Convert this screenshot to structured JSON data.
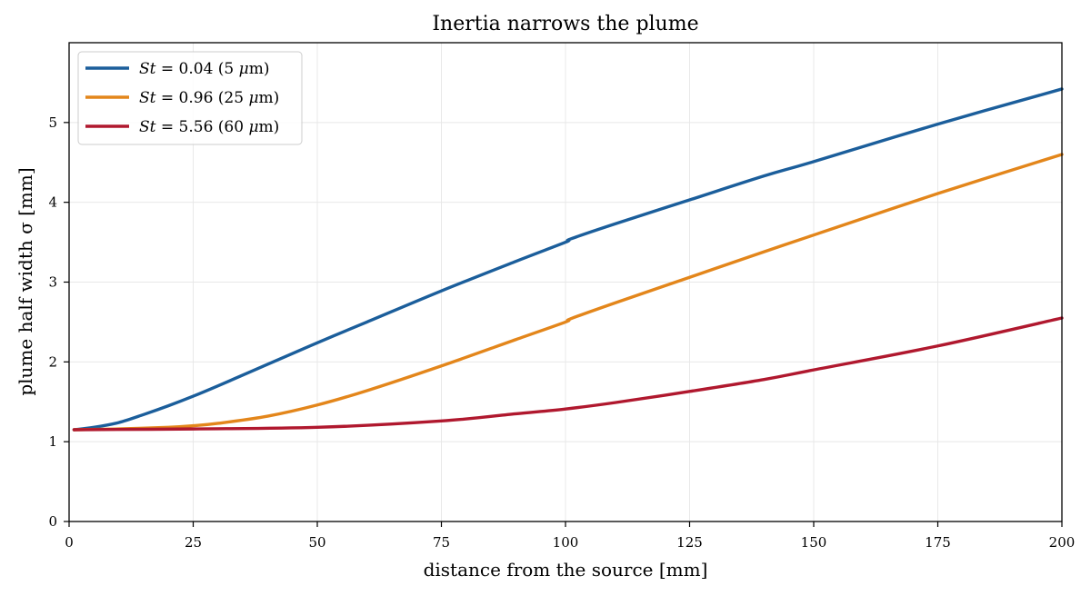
{
  "chart_data": {
    "type": "line",
    "title": "Inertia narrows the plume",
    "xlabel": "distance from the source [mm]",
    "ylabel": "plume half width σ [mm]",
    "xlim": [
      0,
      200
    ],
    "ylim": [
      0,
      6
    ],
    "xticks": [
      0,
      25,
      50,
      75,
      100,
      125,
      150,
      175,
      200
    ],
    "yticks": [
      0,
      1,
      2,
      3,
      4,
      5
    ],
    "grid": true,
    "legend_position": "top-left",
    "series": [
      {
        "name": "St = 0.04 (5 μm)",
        "label_parts": [
          "St",
          " = 0.04 (5 ",
          "μ",
          "m)"
        ],
        "color": "#1b5e9b",
        "x": [
          1,
          5,
          10,
          15,
          20,
          25,
          30,
          40,
          50,
          60,
          75,
          90,
          100,
          101,
          110,
          125,
          140,
          150,
          175,
          200
        ],
        "y": [
          1.15,
          1.18,
          1.24,
          1.34,
          1.45,
          1.57,
          1.7,
          1.97,
          2.24,
          2.5,
          2.89,
          3.26,
          3.5,
          3.54,
          3.73,
          4.03,
          4.33,
          4.51,
          4.98,
          5.42
        ]
      },
      {
        "name": "St = 0.96 (25 μm)",
        "label_parts": [
          "St",
          " = 0.96 (25 ",
          "μ",
          "m)"
        ],
        "color": "#e3861b",
        "x": [
          1,
          10,
          20,
          25,
          30,
          40,
          50,
          60,
          75,
          90,
          100,
          101,
          110,
          125,
          140,
          150,
          175,
          200
        ],
        "y": [
          1.15,
          1.16,
          1.18,
          1.2,
          1.23,
          1.32,
          1.46,
          1.64,
          1.95,
          2.28,
          2.5,
          2.54,
          2.74,
          3.06,
          3.38,
          3.59,
          4.11,
          4.6
        ]
      },
      {
        "name": "St = 5.56 (60 μm)",
        "label_parts": [
          "St",
          " = 5.56 (60 ",
          "μ",
          "m)"
        ],
        "color": "#b0182e",
        "x": [
          1,
          25,
          50,
          75,
          90,
          100,
          110,
          125,
          140,
          150,
          175,
          200
        ],
        "y": [
          1.15,
          1.16,
          1.18,
          1.26,
          1.35,
          1.41,
          1.49,
          1.63,
          1.78,
          1.9,
          2.2,
          2.55
        ]
      }
    ]
  }
}
